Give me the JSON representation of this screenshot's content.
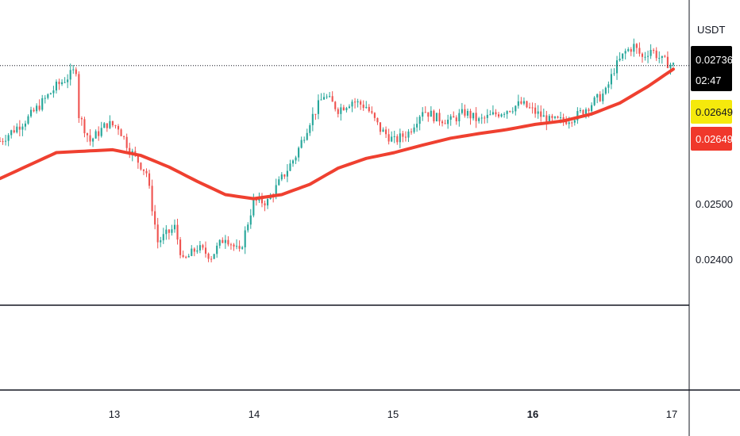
{
  "currency_label": "USDT",
  "price_badges": {
    "last": {
      "value": "0.02736",
      "countdown": "02:47",
      "bg": "#000000",
      "fg": "#ffffff"
    },
    "yellow": {
      "value": "0.02649",
      "bg": "#f5e90c",
      "fg": "#131722"
    },
    "red": {
      "value": "0.02649",
      "bg": "#f0382b",
      "fg": "#ffffff"
    }
  },
  "colors": {
    "up": "#26a69a",
    "down": "#ef5350",
    "ma": "#ef4030",
    "axis_line": "#131722",
    "last_price_line": "#131722"
  },
  "chart_data": {
    "type": "candlestick",
    "title": "",
    "xlabel": "",
    "ylabel": "",
    "x_ticks": [
      {
        "label": "13",
        "bold": false
      },
      {
        "label": "14",
        "bold": false
      },
      {
        "label": "15",
        "bold": false
      },
      {
        "label": "16",
        "bold": true
      },
      {
        "label": "17",
        "bold": false
      }
    ],
    "y_ticks": [
      "0.02500",
      "0.02400"
    ],
    "ylim": [
      0.0232,
      0.0285
    ],
    "last_price": 0.02736,
    "candle_count": 240,
    "price_path_anchors": [
      [
        0,
        0.02605
      ],
      [
        10,
        0.02645
      ],
      [
        20,
        0.027
      ],
      [
        25,
        0.0272
      ],
      [
        27,
        0.0273
      ],
      [
        28,
        0.0265
      ],
      [
        32,
        0.02605
      ],
      [
        38,
        0.02635
      ],
      [
        42,
        0.0263
      ],
      [
        46,
        0.0259
      ],
      [
        52,
        0.0255
      ],
      [
        56,
        0.0243
      ],
      [
        62,
        0.02455
      ],
      [
        65,
        0.02395
      ],
      [
        70,
        0.0242
      ],
      [
        75,
        0.02405
      ],
      [
        80,
        0.0244
      ],
      [
        85,
        0.0241
      ],
      [
        90,
        0.025
      ],
      [
        95,
        0.025
      ],
      [
        100,
        0.0254
      ],
      [
        105,
        0.0258
      ],
      [
        110,
        0.0264
      ],
      [
        115,
        0.02685
      ],
      [
        120,
        0.0266
      ],
      [
        125,
        0.02675
      ],
      [
        130,
        0.02665
      ],
      [
        135,
        0.02625
      ],
      [
        140,
        0.02605
      ],
      [
        145,
        0.0262
      ],
      [
        150,
        0.0266
      ],
      [
        155,
        0.02645
      ],
      [
        160,
        0.0264
      ],
      [
        165,
        0.02655
      ],
      [
        170,
        0.0264
      ],
      [
        175,
        0.0265
      ],
      [
        180,
        0.0266
      ],
      [
        185,
        0.0267
      ],
      [
        190,
        0.02655
      ],
      [
        195,
        0.0264
      ],
      [
        200,
        0.0264
      ],
      [
        205,
        0.0265
      ],
      [
        210,
        0.0267
      ],
      [
        215,
        0.0269
      ],
      [
        218,
        0.0273
      ],
      [
        222,
        0.0276
      ],
      [
        225,
        0.0277
      ],
      [
        228,
        0.0275
      ],
      [
        231,
        0.02765
      ],
      [
        235,
        0.02745
      ],
      [
        239,
        0.02736
      ]
    ],
    "moving_average": [
      [
        0,
        0.0254
      ],
      [
        20,
        0.02585
      ],
      [
        40,
        0.0259
      ],
      [
        50,
        0.0258
      ],
      [
        60,
        0.0256
      ],
      [
        70,
        0.02535
      ],
      [
        80,
        0.02512
      ],
      [
        90,
        0.02505
      ],
      [
        100,
        0.02512
      ],
      [
        110,
        0.0253
      ],
      [
        120,
        0.02558
      ],
      [
        130,
        0.02575
      ],
      [
        140,
        0.02585
      ],
      [
        150,
        0.02598
      ],
      [
        160,
        0.0261
      ],
      [
        170,
        0.02618
      ],
      [
        180,
        0.02625
      ],
      [
        190,
        0.02634
      ],
      [
        200,
        0.0264
      ],
      [
        210,
        0.02652
      ],
      [
        220,
        0.02671
      ],
      [
        230,
        0.027
      ],
      [
        239,
        0.0273
      ]
    ]
  }
}
